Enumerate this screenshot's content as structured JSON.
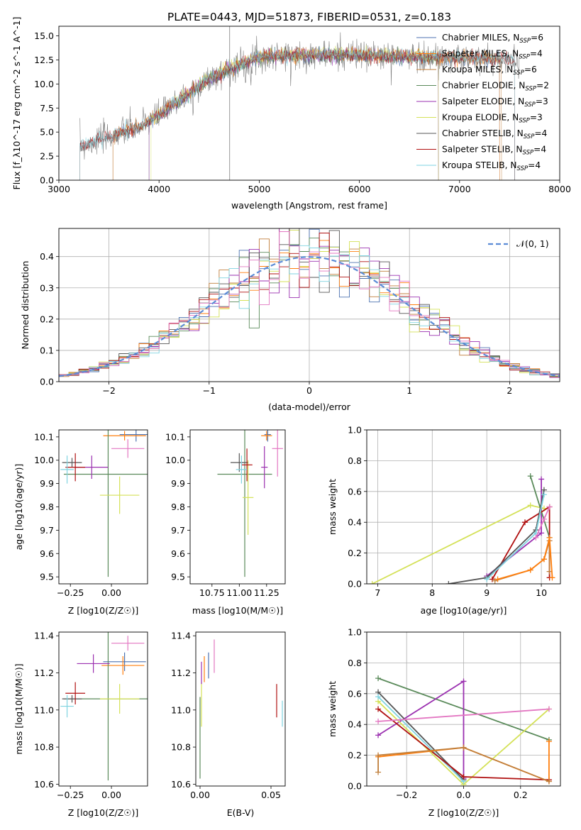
{
  "title": "PLATE=0443, MJD=51873, FIBERID=0531, z=0.183",
  "colors": {
    "Chabrier MILES": "#4c72b0",
    "Salpeter MILES": "#ff7f0e",
    "Kroupa MILES": "#c07f3c",
    "Chabrier ELODIE": "#5a8a5a",
    "Salpeter ELODIE": "#9b30b0",
    "Kroupa ELODIE": "#d4e157",
    "Chabrier STELIB": "#555555",
    "Salpeter STELIB": "#b01010",
    "Kroupa STELIB": "#7fd3e0",
    "pink": "#e377c2",
    "gaussian": "#5b8bd6"
  },
  "chart_data": [
    {
      "type": "line",
      "panel": "spectrum",
      "xlabel": "wavelength [Angstrom, rest frame]",
      "ylabel": "Flux [f_λ10^-17 erg cm^-2 s^-1 A^-1]",
      "xlim": [
        3000,
        8000
      ],
      "ylim": [
        0,
        16
      ],
      "xticks": [
        "3000",
        "4000",
        "5000",
        "6000",
        "7000",
        "8000"
      ],
      "yticks": [
        "0.0",
        "2.5",
        "5.0",
        "7.5",
        "10.0",
        "12.5",
        "15.0"
      ],
      "legend_position": "top-right",
      "legend": [
        {
          "name": "Chabrier MILES",
          "nssp": "6"
        },
        {
          "name": "Salpeter MILES",
          "nssp": "4"
        },
        {
          "name": "Kroupa MILES",
          "nssp": "6"
        },
        {
          "name": "Chabrier ELODIE",
          "nssp": "2"
        },
        {
          "name": "Salpeter ELODIE",
          "nssp": "3"
        },
        {
          "name": "Kroupa ELODIE",
          "nssp": "3"
        },
        {
          "name": "Chabrier STELIB",
          "nssp": "4"
        },
        {
          "name": "Salpeter STELIB",
          "nssp": "4"
        },
        {
          "name": "Kroupa STELIB",
          "nssp": "4"
        }
      ],
      "continuum": {
        "x": [
          3200,
          3500,
          3800,
          4000,
          4200,
          4500,
          4800,
          5000,
          5300,
          5600,
          6000,
          6300,
          6600,
          7000,
          7400,
          7600
        ],
        "y": [
          3.5,
          4.5,
          5.5,
          6.8,
          8.3,
          10.5,
          12.0,
          12.8,
          13.0,
          13.0,
          13.0,
          12.9,
          12.8,
          12.7,
          12.6,
          12.5
        ]
      }
    },
    {
      "type": "bar",
      "panel": "residuals",
      "xlabel": "(data-model)/error",
      "ylabel": "Normed distribution",
      "xlim": [
        -2.5,
        2.5
      ],
      "ylim": [
        0,
        0.49
      ],
      "xticks": [
        "−2",
        "−1",
        "0",
        "1",
        "2"
      ],
      "yticks": [
        "0.0",
        "0.1",
        "0.2",
        "0.3",
        "0.4"
      ],
      "grid": true,
      "gaussian_label": "𝒩(0, 1)",
      "legend_position": "top-right"
    },
    {
      "type": "scatter",
      "panel": "age-vs-Z",
      "xlabel": "Z [log10(Z/Z☉)]",
      "ylabel": "age  [log10(age/yr)]",
      "xlim": [
        -0.32,
        0.22
      ],
      "ylim": [
        9.47,
        10.13
      ],
      "xticks": [
        "−0.25",
        "0.00"
      ],
      "yticks": [
        "9.5",
        "9.6",
        "9.7",
        "9.8",
        "9.9",
        "10.0",
        "10.1"
      ],
      "points": [
        {
          "c": "Chabrier MILES",
          "x": 0.15,
          "y": 10.11,
          "xe": 0.1,
          "ye": 0.03
        },
        {
          "c": "Salpeter MILES",
          "x": 0.08,
          "y": 10.105,
          "xe": 0.13,
          "ye": 0.02
        },
        {
          "c": "pink",
          "x": 0.1,
          "y": 10.05,
          "xe": 0.1,
          "ye": 0.04
        },
        {
          "c": "Chabrier ELODIE",
          "x": -0.02,
          "y": 9.94,
          "xe": 0.27,
          "ye": 0.44
        },
        {
          "c": "Salpeter ELODIE",
          "x": -0.12,
          "y": 9.97,
          "xe": 0.1,
          "ye": 0.05
        },
        {
          "c": "Kroupa ELODIE",
          "x": 0.05,
          "y": 9.85,
          "xe": 0.12,
          "ye": 0.08
        },
        {
          "c": "Chabrier STELIB",
          "x": -0.24,
          "y": 9.99,
          "xe": 0.06,
          "ye": 0.02
        },
        {
          "c": "Salpeter STELIB",
          "x": -0.22,
          "y": 9.97,
          "xe": 0.06,
          "ye": 0.06
        },
        {
          "c": "Kroupa STELIB",
          "x": -0.27,
          "y": 9.96,
          "xe": 0.04,
          "ye": 0.06
        }
      ]
    },
    {
      "type": "scatter",
      "panel": "age-vs-mass",
      "xlabel": "mass [log10(M/M☉)]",
      "ylabel": "",
      "xlim": [
        10.55,
        11.42
      ],
      "ylim": [
        9.47,
        10.13
      ],
      "xticks": [
        "10.75",
        "11.00",
        "11.25"
      ],
      "yticks": [
        "9.5",
        "9.6",
        "9.7",
        "9.8",
        "9.9",
        "10.0",
        "10.1"
      ],
      "points": [
        {
          "c": "Chabrier MILES",
          "x": 11.26,
          "y": 10.11,
          "xe": 0.03,
          "ye": 0.03
        },
        {
          "c": "Salpeter MILES",
          "x": 11.25,
          "y": 10.105,
          "xe": 0.05,
          "ye": 0.02
        },
        {
          "c": "pink",
          "x": 11.35,
          "y": 10.05,
          "xe": 0.05,
          "ye": 0.12
        },
        {
          "c": "Chabrier ELODIE",
          "x": 11.05,
          "y": 9.94,
          "xe": 0.25,
          "ye": 0.44
        },
        {
          "c": "Salpeter ELODIE",
          "x": 11.23,
          "y": 9.97,
          "xe": 0.03,
          "ye": 0.09
        },
        {
          "c": "Kroupa ELODIE",
          "x": 11.08,
          "y": 9.84,
          "xe": 0.05,
          "ye": 0.16
        },
        {
          "c": "Chabrier STELIB",
          "x": 11.0,
          "y": 9.99,
          "xe": 0.08,
          "ye": 0.04
        },
        {
          "c": "Salpeter STELIB",
          "x": 11.07,
          "y": 9.98,
          "xe": 0.05,
          "ye": 0.07
        },
        {
          "c": "Kroupa STELIB",
          "x": 11.02,
          "y": 9.96,
          "xe": 0.05,
          "ye": 0.06
        }
      ]
    },
    {
      "type": "line",
      "panel": "weight-vs-age",
      "xlabel": "age  [log10(age/yr)]",
      "ylabel": "mass weight",
      "xlim": [
        6.8,
        10.35
      ],
      "ylim": [
        0,
        1
      ],
      "xticks": [
        "7",
        "8",
        "9",
        "10"
      ],
      "yticks": [
        "0.0",
        "0.2",
        "0.4",
        "0.6",
        "0.8",
        "1.0"
      ],
      "grid": true,
      "series": [
        {
          "c": "Kroupa ELODIE",
          "x": [
            6.9,
            9.8,
            10.05
          ],
          "y": [
            0.0,
            0.51,
            0.49
          ]
        },
        {
          "c": "Salpeter ELODIE",
          "x": [
            9.0,
            10.0,
            10.0
          ],
          "y": [
            0.05,
            0.33,
            0.68
          ]
        },
        {
          "c": "Chabrier ELODIE",
          "x": [
            9.8,
            10.15
          ],
          "y": [
            0.7,
            0.3
          ]
        },
        {
          "c": "Salpeter STELIB",
          "x": [
            9.1,
            9.7,
            10.15,
            10.15
          ],
          "y": [
            0.03,
            0.4,
            0.5,
            0.04
          ]
        },
        {
          "c": "Chabrier STELIB",
          "x": [
            8.3,
            9.0,
            9.9,
            10.05
          ],
          "y": [
            0.0,
            0.04,
            0.35,
            0.61
          ]
        },
        {
          "c": "Kroupa STELIB",
          "x": [
            9.0,
            9.9,
            10.05
          ],
          "y": [
            0.03,
            0.33,
            0.58
          ]
        },
        {
          "c": "Kroupa MILES",
          "x": [
            9.15,
            9.8,
            10.05,
            10.15,
            10.15
          ],
          "y": [
            0.02,
            0.09,
            0.16,
            0.28,
            0.08
          ]
        },
        {
          "c": "Salpeter MILES",
          "x": [
            9.2,
            9.8,
            10.05,
            10.15,
            10.2
          ],
          "y": [
            0.03,
            0.09,
            0.16,
            0.3,
            0.04
          ]
        },
        {
          "c": "pink",
          "x": [
            9.9,
            10.05,
            10.15
          ],
          "y": [
            0.3,
            0.42,
            0.5
          ]
        }
      ]
    },
    {
      "type": "scatter",
      "panel": "mass-vs-Z",
      "xlabel": "Z [log10(Z/Z☉)]",
      "ylabel": "mass [log10(M/M☉)]",
      "xlim": [
        -0.32,
        0.22
      ],
      "ylim": [
        10.59,
        11.42
      ],
      "xticks": [
        "−0.25",
        "0.00"
      ],
      "yticks": [
        "10.6",
        "10.8",
        "11.0",
        "11.2",
        "11.4"
      ],
      "points": [
        {
          "c": "Chabrier MILES",
          "x": 0.08,
          "y": 11.26,
          "xe": 0.13,
          "ye": 0.05
        },
        {
          "c": "Salpeter MILES",
          "x": 0.07,
          "y": 11.24,
          "xe": 0.13,
          "ye": 0.05
        },
        {
          "c": "pink",
          "x": 0.1,
          "y": 11.36,
          "xe": 0.1,
          "ye": 0.04
        },
        {
          "c": "Chabrier ELODIE",
          "x": -0.02,
          "y": 11.06,
          "xe": 0.27,
          "ye": 0.44
        },
        {
          "c": "Salpeter ELODIE",
          "x": -0.11,
          "y": 11.25,
          "xe": 0.1,
          "ye": 0.05
        },
        {
          "c": "Kroupa ELODIE",
          "x": 0.05,
          "y": 11.06,
          "xe": 0.12,
          "ye": 0.08
        },
        {
          "c": "Chabrier STELIB",
          "x": -0.24,
          "y": 11.06,
          "xe": 0.06,
          "ye": 0.02
        },
        {
          "c": "Salpeter STELIB",
          "x": -0.22,
          "y": 11.09,
          "xe": 0.06,
          "ye": 0.06
        },
        {
          "c": "Kroupa STELIB",
          "x": -0.27,
          "y": 11.02,
          "xe": 0.04,
          "ye": 0.06
        }
      ]
    },
    {
      "type": "scatter",
      "panel": "mass-vs-EBV",
      "xlabel": "E(B-V)",
      "ylabel": "",
      "xlim": [
        -0.003,
        0.06
      ],
      "ylim": [
        10.59,
        11.42
      ],
      "xticks": [
        "0.00",
        "0.05"
      ],
      "yticks": [
        "10.6",
        "10.8",
        "11.0",
        "11.2",
        "11.4"
      ],
      "points": [
        {
          "c": "Chabrier ELODIE",
          "x": 0.0,
          "y": 10.85,
          "xe": 0,
          "ye": 0.22
        },
        {
          "c": "Kroupa ELODIE",
          "x": 0.001,
          "y": 11.03,
          "xe": 0,
          "ye": 0.12
        },
        {
          "c": "Salpeter ELODIE",
          "x": 0.001,
          "y": 11.2,
          "xe": 0,
          "ye": 0.06
        },
        {
          "c": "Salpeter MILES",
          "x": 0.003,
          "y": 11.22,
          "xe": 0,
          "ye": 0.07
        },
        {
          "c": "Chabrier MILES",
          "x": 0.006,
          "y": 11.24,
          "xe": 0,
          "ye": 0.07
        },
        {
          "c": "pink",
          "x": 0.01,
          "y": 11.29,
          "xe": 0,
          "ye": 0.09
        },
        {
          "c": "Salpeter STELIB",
          "x": 0.054,
          "y": 11.05,
          "xe": 0,
          "ye": 0.09
        },
        {
          "c": "Kroupa STELIB",
          "x": 0.058,
          "y": 10.98,
          "xe": 0,
          "ye": 0.07
        }
      ]
    },
    {
      "type": "line",
      "panel": "weight-vs-Z",
      "xlabel": "Z [log10(Z/Z☉)]",
      "ylabel": "mass weight",
      "xlim": [
        -0.34,
        0.34
      ],
      "ylim": [
        0,
        1
      ],
      "xticks": [
        "−0.2",
        "0.0",
        "0.2"
      ],
      "yticks": [
        "0.0",
        "0.2",
        "0.4",
        "0.6",
        "0.8",
        "1.0"
      ],
      "grid": true,
      "series": [
        {
          "c": "Chabrier ELODIE",
          "x": [
            -0.3,
            0.3
          ],
          "y": [
            0.7,
            0.3
          ]
        },
        {
          "c": "Salpeter ELODIE",
          "x": [
            -0.3,
            0.0,
            0.0
          ],
          "y": [
            0.33,
            0.68,
            0.05
          ]
        },
        {
          "c": "Kroupa ELODIE",
          "x": [
            -0.3,
            0.0,
            0.3
          ],
          "y": [
            0.55,
            0.01,
            0.5
          ]
        },
        {
          "c": "Chabrier STELIB",
          "x": [
            -0.3,
            0.0
          ],
          "y": [
            0.61,
            0.04
          ]
        },
        {
          "c": "Kroupa STELIB",
          "x": [
            -0.3,
            0.0
          ],
          "y": [
            0.58,
            0.03
          ]
        },
        {
          "c": "Salpeter STELIB",
          "x": [
            -0.3,
            0.0,
            0.3
          ],
          "y": [
            0.5,
            0.06,
            0.04
          ]
        },
        {
          "c": "pink",
          "x": [
            -0.3,
            0.3
          ],
          "y": [
            0.42,
            0.5
          ]
        },
        {
          "c": "Salpeter MILES",
          "x": [
            -0.3,
            0.0,
            0.3,
            0.3
          ],
          "y": [
            0.19,
            0.25,
            0.03,
            0.29
          ]
        },
        {
          "c": "Kroupa MILES",
          "x": [
            -0.3,
            -0.3,
            0.0,
            0.3
          ],
          "y": [
            0.09,
            0.2,
            0.25,
            0.03
          ]
        }
      ]
    }
  ]
}
